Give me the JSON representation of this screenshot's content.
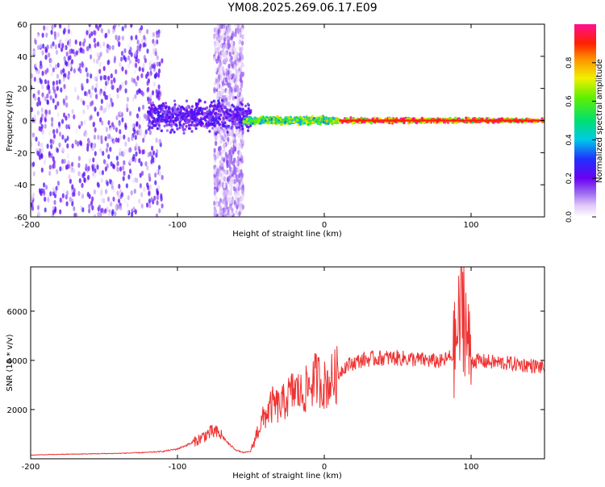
{
  "figure": {
    "title": "YM08.2025.269.06.17.E09"
  },
  "chart_data": [
    {
      "type": "heatmap",
      "title": "",
      "xlabel": "Height of straight line (km)",
      "ylabel": "Frequency (Hz)",
      "xlim": [
        -200,
        150
      ],
      "ylim": [
        -60,
        60
      ],
      "xticks": [
        -200,
        -100,
        0,
        100
      ],
      "yticks": [
        -60,
        -40,
        -20,
        0,
        20,
        40,
        60
      ],
      "colorbar": {
        "label": "Normalized spectral amplitude",
        "range": [
          0,
          1
        ],
        "ticks": [
          0.0,
          0.2,
          0.4,
          0.6,
          0.8
        ],
        "colormap": "purple-blue-cyan-green-yellow-red-magenta"
      },
      "regions": [
        {
          "x_range": [
            -200,
            -110
          ],
          "freq_range": [
            -60,
            60
          ],
          "amplitude": 0.05,
          "note": "scattered noise"
        },
        {
          "x_range": [
            -75,
            -55
          ],
          "freq_range": [
            -60,
            60
          ],
          "amplitude": 0.03,
          "note": "scattered noise band"
        },
        {
          "x_range": [
            -120,
            -50
          ],
          "freq_range": [
            -10,
            15
          ],
          "amplitude": 0.2
        },
        {
          "x_range": [
            -55,
            10
          ],
          "freq_range": [
            -3,
            3
          ],
          "amplitude": 0.55
        },
        {
          "x_range": [
            10,
            150
          ],
          "freq_range": [
            -2,
            2
          ],
          "amplitude": 0.85
        }
      ]
    },
    {
      "type": "line",
      "title": "",
      "xlabel": "Height of straight line (km)",
      "ylabel": "SNR (10 * v/v)",
      "xlim": [
        -200,
        150
      ],
      "ylim": [
        0,
        7800
      ],
      "xticks": [
        -200,
        -100,
        0,
        100
      ],
      "yticks": [
        2000,
        4000,
        6000
      ],
      "line_color": "#ee3333",
      "series": [
        {
          "x": [
            -200,
            -180,
            -160,
            -140,
            -120,
            -110,
            -100,
            -90,
            -85,
            -80,
            -75,
            -70,
            -65,
            -60,
            -55,
            -50,
            -45,
            -40,
            -35,
            -30,
            -25,
            -20,
            -15,
            -10,
            -5,
            0,
            5,
            10,
            15,
            20,
            25,
            30,
            40,
            50,
            60,
            70,
            80,
            88,
            92,
            95,
            97,
            100,
            110,
            120,
            130,
            140,
            150
          ],
          "y": [
            150,
            180,
            200,
            220,
            260,
            300,
            400,
            650,
            800,
            1000,
            1100,
            950,
            600,
            350,
            250,
            300,
            1200,
            1800,
            2200,
            2100,
            2500,
            2800,
            2600,
            3000,
            3300,
            3000,
            3200,
            3500,
            3800,
            3900,
            4000,
            4050,
            4100,
            4100,
            4050,
            4000,
            3950,
            4200,
            5500,
            6500,
            5000,
            4000,
            3950,
            3900,
            3850,
            3800,
            3700
          ]
        }
      ]
    }
  ]
}
